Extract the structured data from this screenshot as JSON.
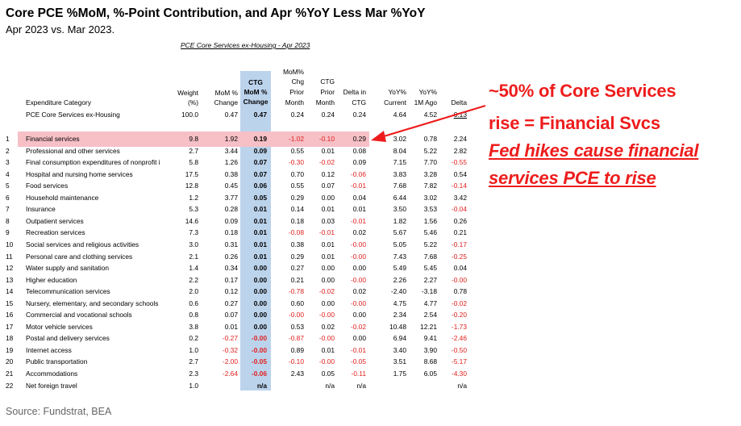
{
  "title": "Core PCE %MoM, %-Point Contribution, and Apr %YoY Less Mar %YoY",
  "subtitle": "Apr 2023 vs. Mar 2023.",
  "table_caption": "PCE Core Services ex-Housing - Apr 2023",
  "source": "Source: Fundstrat, BEA",
  "colors": {
    "negative": "#e0201e",
    "ctg_band": "#bcd3ec",
    "highlight": "#f6c0c6",
    "callout": "#ee1c1c"
  },
  "headers": {
    "category": "Expenditure Category",
    "weight": [
      "Weight",
      "(%)"
    ],
    "mom": [
      "MoM %",
      "Change"
    ],
    "ctg": [
      "CTG",
      "MoM %",
      "Change"
    ],
    "mom_chg": [
      "MoM%",
      "Chg",
      "Prior",
      "Month"
    ],
    "ctg_prior": [
      "CTG",
      "Prior",
      "Month"
    ],
    "delta_ctg": [
      "Delta in",
      "CTG"
    ],
    "yoy_cur": [
      "YoY%",
      "Current"
    ],
    "yoy_ago": [
      "YoY%",
      "1M Ago"
    ],
    "delta": [
      "Delta"
    ]
  },
  "callout": {
    "line1": "~50% of Core Services",
    "line2": "rise = Financial Svcs",
    "line3": "Fed hikes cause financial",
    "line4": "services PCE to rise"
  },
  "chart_data": {
    "type": "table",
    "columns": [
      "",
      "Expenditure Category",
      "Weight (%)",
      "MoM % Change",
      "CTG MoM % Change",
      "MoM% Chg Prior Month",
      "CTG Prior Month",
      "Delta in CTG",
      "YoY% Current",
      "YoY% 1M Ago",
      "Delta"
    ],
    "total": {
      "num": "",
      "name": "PCE Core Services ex-Housing",
      "weight": "100.0",
      "mom": "0.47",
      "ctg": "0.47",
      "mom_prior": "0.24",
      "ctg_prior": "0.24",
      "delta_ctg": "0.24",
      "yoy_cur": "4.64",
      "yoy_ago": "4.52",
      "delta": "0.13"
    },
    "rows": [
      {
        "num": "1",
        "name": "Financial services",
        "weight": "9.8",
        "mom": "1.92",
        "ctg": "0.19",
        "mom_prior": "-1.02",
        "ctg_prior": "-0.10",
        "delta_ctg": "0.29",
        "yoy_cur": "3.02",
        "yoy_ago": "0.78",
        "delta": "2.24"
      },
      {
        "num": "2",
        "name": "Professional and other services",
        "weight": "2.7",
        "mom": "3.44",
        "ctg": "0.09",
        "mom_prior": "0.55",
        "ctg_prior": "0.01",
        "delta_ctg": "0.08",
        "yoy_cur": "8.04",
        "yoy_ago": "5.22",
        "delta": "2.82"
      },
      {
        "num": "3",
        "name": "Final consumption expenditures of nonprofit i",
        "weight": "5.8",
        "mom": "1.26",
        "ctg": "0.07",
        "mom_prior": "-0.30",
        "ctg_prior": "-0.02",
        "delta_ctg": "0.09",
        "yoy_cur": "7.15",
        "yoy_ago": "7.70",
        "delta": "-0.55"
      },
      {
        "num": "4",
        "name": "Hospital and nursing home services",
        "weight": "17.5",
        "mom": "0.38",
        "ctg": "0.07",
        "mom_prior": "0.70",
        "ctg_prior": "0.12",
        "delta_ctg": "-0.06",
        "yoy_cur": "3.83",
        "yoy_ago": "3.28",
        "delta": "0.54"
      },
      {
        "num": "5",
        "name": "Food services",
        "weight": "12.8",
        "mom": "0.45",
        "ctg": "0.06",
        "mom_prior": "0.55",
        "ctg_prior": "0.07",
        "delta_ctg": "-0.01",
        "yoy_cur": "7.68",
        "yoy_ago": "7.82",
        "delta": "-0.14"
      },
      {
        "num": "6",
        "name": "Household maintenance",
        "weight": "1.2",
        "mom": "3.77",
        "ctg": "0.05",
        "mom_prior": "0.29",
        "ctg_prior": "0.00",
        "delta_ctg": "0.04",
        "yoy_cur": "6.44",
        "yoy_ago": "3.02",
        "delta": "3.42"
      },
      {
        "num": "7",
        "name": "Insurance",
        "weight": "5.3",
        "mom": "0.28",
        "ctg": "0.01",
        "mom_prior": "0.14",
        "ctg_prior": "0.01",
        "delta_ctg": "0.01",
        "yoy_cur": "3.50",
        "yoy_ago": "3.53",
        "delta": "-0.04"
      },
      {
        "num": "8",
        "name": "Outpatient services",
        "weight": "14.6",
        "mom": "0.09",
        "ctg": "0.01",
        "mom_prior": "0.18",
        "ctg_prior": "0.03",
        "delta_ctg": "-0.01",
        "yoy_cur": "1.82",
        "yoy_ago": "1.56",
        "delta": "0.26"
      },
      {
        "num": "9",
        "name": "Recreation services",
        "weight": "7.3",
        "mom": "0.18",
        "ctg": "0.01",
        "mom_prior": "-0.08",
        "ctg_prior": "-0.01",
        "delta_ctg": "0.02",
        "yoy_cur": "5.67",
        "yoy_ago": "5.46",
        "delta": "0.21"
      },
      {
        "num": "10",
        "name": "Social services and religious activities",
        "weight": "3.0",
        "mom": "0.31",
        "ctg": "0.01",
        "mom_prior": "0.38",
        "ctg_prior": "0.01",
        "delta_ctg": "-0.00",
        "yoy_cur": "5.05",
        "yoy_ago": "5.22",
        "delta": "-0.17"
      },
      {
        "num": "11",
        "name": "Personal care and clothing services",
        "weight": "2.1",
        "mom": "0.26",
        "ctg": "0.01",
        "mom_prior": "0.29",
        "ctg_prior": "0.01",
        "delta_ctg": "-0.00",
        "yoy_cur": "7.43",
        "yoy_ago": "7.68",
        "delta": "-0.25"
      },
      {
        "num": "12",
        "name": "Water supply and sanitation",
        "weight": "1.4",
        "mom": "0.34",
        "ctg": "0.00",
        "mom_prior": "0.27",
        "ctg_prior": "0.00",
        "delta_ctg": "0.00",
        "yoy_cur": "5.49",
        "yoy_ago": "5.45",
        "delta": "0.04"
      },
      {
        "num": "13",
        "name": "Higher education",
        "weight": "2.2",
        "mom": "0.17",
        "ctg": "0.00",
        "mom_prior": "0.21",
        "ctg_prior": "0.00",
        "delta_ctg": "-0.00",
        "yoy_cur": "2.26",
        "yoy_ago": "2.27",
        "delta": "-0.00"
      },
      {
        "num": "14",
        "name": "Telecommunication services",
        "weight": "2.0",
        "mom": "0.12",
        "ctg": "0.00",
        "mom_prior": "-0.78",
        "ctg_prior": "-0.02",
        "delta_ctg": "0.02",
        "yoy_cur": "-2.40",
        "yoy_ago": "-3.18",
        "delta": "0.78"
      },
      {
        "num": "15",
        "name": "Nursery, elementary, and secondary schools",
        "weight": "0.6",
        "mom": "0.27",
        "ctg": "0.00",
        "mom_prior": "0.60",
        "ctg_prior": "0.00",
        "delta_ctg": "-0.00",
        "yoy_cur": "4.75",
        "yoy_ago": "4.77",
        "delta": "-0.02"
      },
      {
        "num": "16",
        "name": "Commercial and vocational schools",
        "weight": "0.8",
        "mom": "0.07",
        "ctg": "0.00",
        "mom_prior": "-0.00",
        "ctg_prior": "-0.00",
        "delta_ctg": "0.00",
        "yoy_cur": "2.34",
        "yoy_ago": "2.54",
        "delta": "-0.20"
      },
      {
        "num": "17",
        "name": "Motor vehicle services",
        "weight": "3.8",
        "mom": "0.01",
        "ctg": "0.00",
        "mom_prior": "0.53",
        "ctg_prior": "0.02",
        "delta_ctg": "-0.02",
        "yoy_cur": "10.48",
        "yoy_ago": "12.21",
        "delta": "-1.73"
      },
      {
        "num": "18",
        "name": "Postal and delivery services",
        "weight": "0.2",
        "mom": "-0.27",
        "ctg": "-0.00",
        "mom_prior": "-0.87",
        "ctg_prior": "-0.00",
        "delta_ctg": "0.00",
        "yoy_cur": "6.94",
        "yoy_ago": "9.41",
        "delta": "-2.46"
      },
      {
        "num": "19",
        "name": "Internet access",
        "weight": "1.0",
        "mom": "-0.32",
        "ctg": "-0.00",
        "mom_prior": "0.89",
        "ctg_prior": "0.01",
        "delta_ctg": "-0.01",
        "yoy_cur": "3.40",
        "yoy_ago": "3.90",
        "delta": "-0.50"
      },
      {
        "num": "20",
        "name": "Public transportation",
        "weight": "2.7",
        "mom": "-2.00",
        "ctg": "-0.05",
        "mom_prior": "-0.10",
        "ctg_prior": "-0.00",
        "delta_ctg": "-0.05",
        "yoy_cur": "3.51",
        "yoy_ago": "8.68",
        "delta": "-5.17"
      },
      {
        "num": "21",
        "name": "Accommodations",
        "weight": "2.3",
        "mom": "-2.64",
        "ctg": "-0.06",
        "mom_prior": "2.43",
        "ctg_prior": "0.05",
        "delta_ctg": "-0.11",
        "yoy_cur": "1.75",
        "yoy_ago": "6.05",
        "delta": "-4.30"
      },
      {
        "num": "22",
        "name": "Net foreign travel",
        "weight": "1.0",
        "mom": "",
        "ctg": "n/a",
        "mom_prior": "",
        "ctg_prior": "n/a",
        "delta_ctg": "n/a",
        "yoy_cur": "",
        "yoy_ago": "",
        "delta": "n/a"
      }
    ]
  }
}
